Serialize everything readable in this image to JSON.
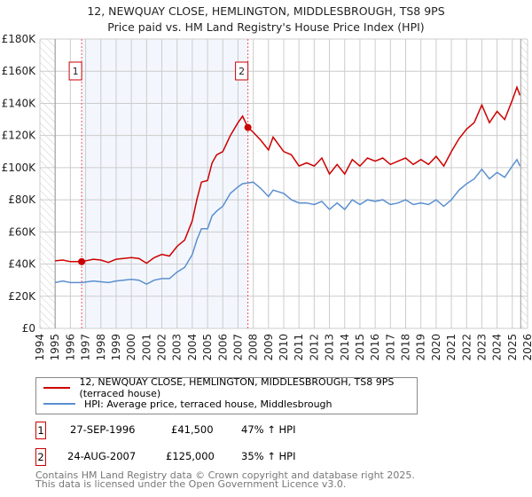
{
  "title_line1": "12, NEWQUAY CLOSE, HEMLINGTON, MIDDLESBROUGH, TS8 9PS",
  "title_line2": "Price paid vs. HM Land Registry's House Price Index (HPI)",
  "chart_data": {
    "type": "line",
    "title": "12, NEWQUAY CLOSE, HEMLINGTON, MIDDLESBROUGH, TS8 9PS - Price paid vs. HM Land Registry's House Price Index (HPI)",
    "xlim": [
      1994,
      2026
    ],
    "ylim": [
      0,
      180000
    ],
    "x_ticks": [
      "1994",
      "1995",
      "1996",
      "1997",
      "1998",
      "1999",
      "2000",
      "2001",
      "2002",
      "2003",
      "2004",
      "2005",
      "2006",
      "2007",
      "2008",
      "2009",
      "2010",
      "2011",
      "2012",
      "2013",
      "2014",
      "2015",
      "2016",
      "2017",
      "2018",
      "2019",
      "2020",
      "2021",
      "2022",
      "2023",
      "2024",
      "2025",
      "2026"
    ],
    "y_ticks": [
      "£0",
      "£20K",
      "£40K",
      "£60K",
      "£80K",
      "£100K",
      "£120K",
      "£140K",
      "£160K",
      "£180K"
    ],
    "grid": true,
    "series": [
      {
        "name": "12, NEWQUAY CLOSE, HEMLINGTON, MIDDLESBROUGH, TS8 9PS (terraced house)",
        "color": "#cc0000",
        "x": [
          1995,
          1995.5,
          1996,
          1996.75,
          1997.5,
          1998,
          1998.5,
          1999,
          2000,
          2000.5,
          2001,
          2001.5,
          2002,
          2002.5,
          2003,
          2003.5,
          2004,
          2004.3,
          2004.6,
          2005,
          2005.3,
          2005.6,
          2006,
          2006.5,
          2007,
          2007.3,
          2007.65,
          2008,
          2008.5,
          2009,
          2009.3,
          2010,
          2010.5,
          2011,
          2011.5,
          2012,
          2012.5,
          2013,
          2013.5,
          2014,
          2014.5,
          2015,
          2015.5,
          2016,
          2016.5,
          2017,
          2017.5,
          2018,
          2018.5,
          2019,
          2019.5,
          2020,
          2020.5,
          2021,
          2021.5,
          2022,
          2022.5,
          2023,
          2023.5,
          2024,
          2024.5,
          2025,
          2025.3,
          2025.5
        ],
        "y": [
          42000,
          42500,
          41500,
          41500,
          43000,
          42500,
          41000,
          43000,
          44000,
          43500,
          40500,
          44000,
          46000,
          45000,
          51000,
          55000,
          67000,
          80000,
          91000,
          92000,
          103000,
          108000,
          110000,
          120000,
          128000,
          132000,
          125000,
          122000,
          117000,
          111000,
          119000,
          110000,
          108000,
          101000,
          103000,
          101000,
          106000,
          96000,
          102000,
          96000,
          105000,
          101000,
          106000,
          104000,
          106000,
          102000,
          104000,
          106000,
          102000,
          105000,
          102000,
          107000,
          101000,
          110000,
          118000,
          124000,
          128000,
          139000,
          128000,
          135000,
          130000,
          142000,
          150000,
          145000
        ]
      },
      {
        "name": "HPI: Average price, terraced house, Middlesbrough",
        "color": "#5b8fd0",
        "x": [
          1995,
          1995.5,
          1996,
          1996.75,
          1997.5,
          1998,
          1998.5,
          1999,
          2000,
          2000.5,
          2001,
          2001.5,
          2002,
          2002.5,
          2003,
          2003.5,
          2004,
          2004.3,
          2004.6,
          2005,
          2005.3,
          2005.6,
          2006,
          2006.5,
          2007,
          2007.3,
          2007.65,
          2008,
          2008.5,
          2009,
          2009.3,
          2010,
          2010.5,
          2011,
          2011.5,
          2012,
          2012.5,
          2013,
          2013.5,
          2014,
          2014.5,
          2015,
          2015.5,
          2016,
          2016.5,
          2017,
          2017.5,
          2018,
          2018.5,
          2019,
          2019.5,
          2020,
          2020.5,
          2021,
          2021.5,
          2022,
          2022.5,
          2023,
          2023.5,
          2024,
          2024.5,
          2025,
          2025.3,
          2025.5
        ],
        "y": [
          28500,
          29500,
          28500,
          28500,
          29500,
          29000,
          28500,
          29500,
          30500,
          30000,
          27500,
          30000,
          31000,
          31000,
          35000,
          38000,
          46000,
          55000,
          62000,
          62000,
          70000,
          73000,
          76000,
          84000,
          88000,
          90000,
          90500,
          91000,
          87000,
          82000,
          86000,
          84000,
          80000,
          78000,
          78000,
          77000,
          79000,
          74000,
          78000,
          74000,
          80000,
          77000,
          80000,
          79000,
          80000,
          77000,
          78000,
          80000,
          77000,
          78000,
          77000,
          80000,
          76000,
          80000,
          86000,
          90000,
          93000,
          99000,
          93000,
          97000,
          94000,
          101000,
          105000,
          101000
        ]
      }
    ],
    "sales": [
      {
        "label": "1",
        "x": 1996.74,
        "y": 41500
      },
      {
        "label": "2",
        "x": 2007.65,
        "y": 125000
      }
    ]
  },
  "legend": {
    "series1": "12, NEWQUAY CLOSE, HEMLINGTON, MIDDLESBROUGH, TS8 9PS (terraced house)",
    "series2": "HPI: Average price, terraced house, Middlesbrough"
  },
  "sales_table": [
    {
      "num": "1",
      "date": "27-SEP-1996",
      "price": "£41,500",
      "hpi": "47% ↑ HPI"
    },
    {
      "num": "2",
      "date": "24-AUG-2007",
      "price": "£125,000",
      "hpi": "35% ↑ HPI"
    }
  ],
  "footer_line1": "Contains HM Land Registry data © Crown copyright and database right 2025.",
  "footer_line2": "This data is licensed under the Open Government Licence v3.0."
}
